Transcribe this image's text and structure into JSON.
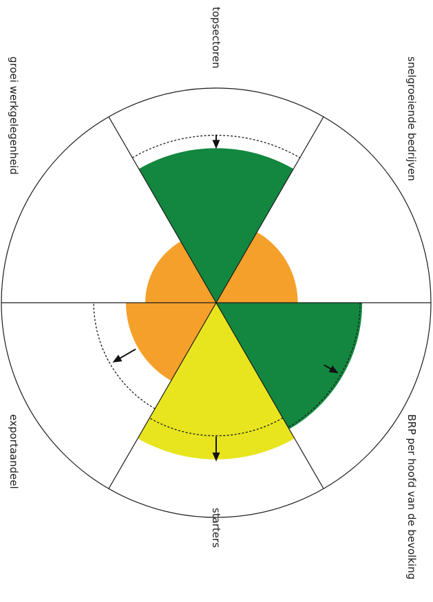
{
  "chart_data": {
    "type": "polar-area",
    "orientation": "rotated 90deg clockwise",
    "categories": [
      "topsectoren",
      "snelgroeiende bedrijven",
      "BRP per hoofd van de bevolking",
      "starters",
      "exportaandeel",
      "groei werkgelegenheid"
    ],
    "values": [
      0.72,
      0.38,
      0.68,
      0.73,
      0.42,
      0.33
    ],
    "reference": [
      0.78,
      null,
      0.67,
      0.62,
      0.57,
      null
    ],
    "trend": [
      "down",
      null,
      "up",
      "down",
      "up",
      null
    ],
    "colors": [
      "#13873f",
      "#f5a02a",
      "#13873f",
      "#e8e51f",
      "#f5a02a",
      "#f5a02a"
    ],
    "grid": false,
    "legend": "none"
  }
}
